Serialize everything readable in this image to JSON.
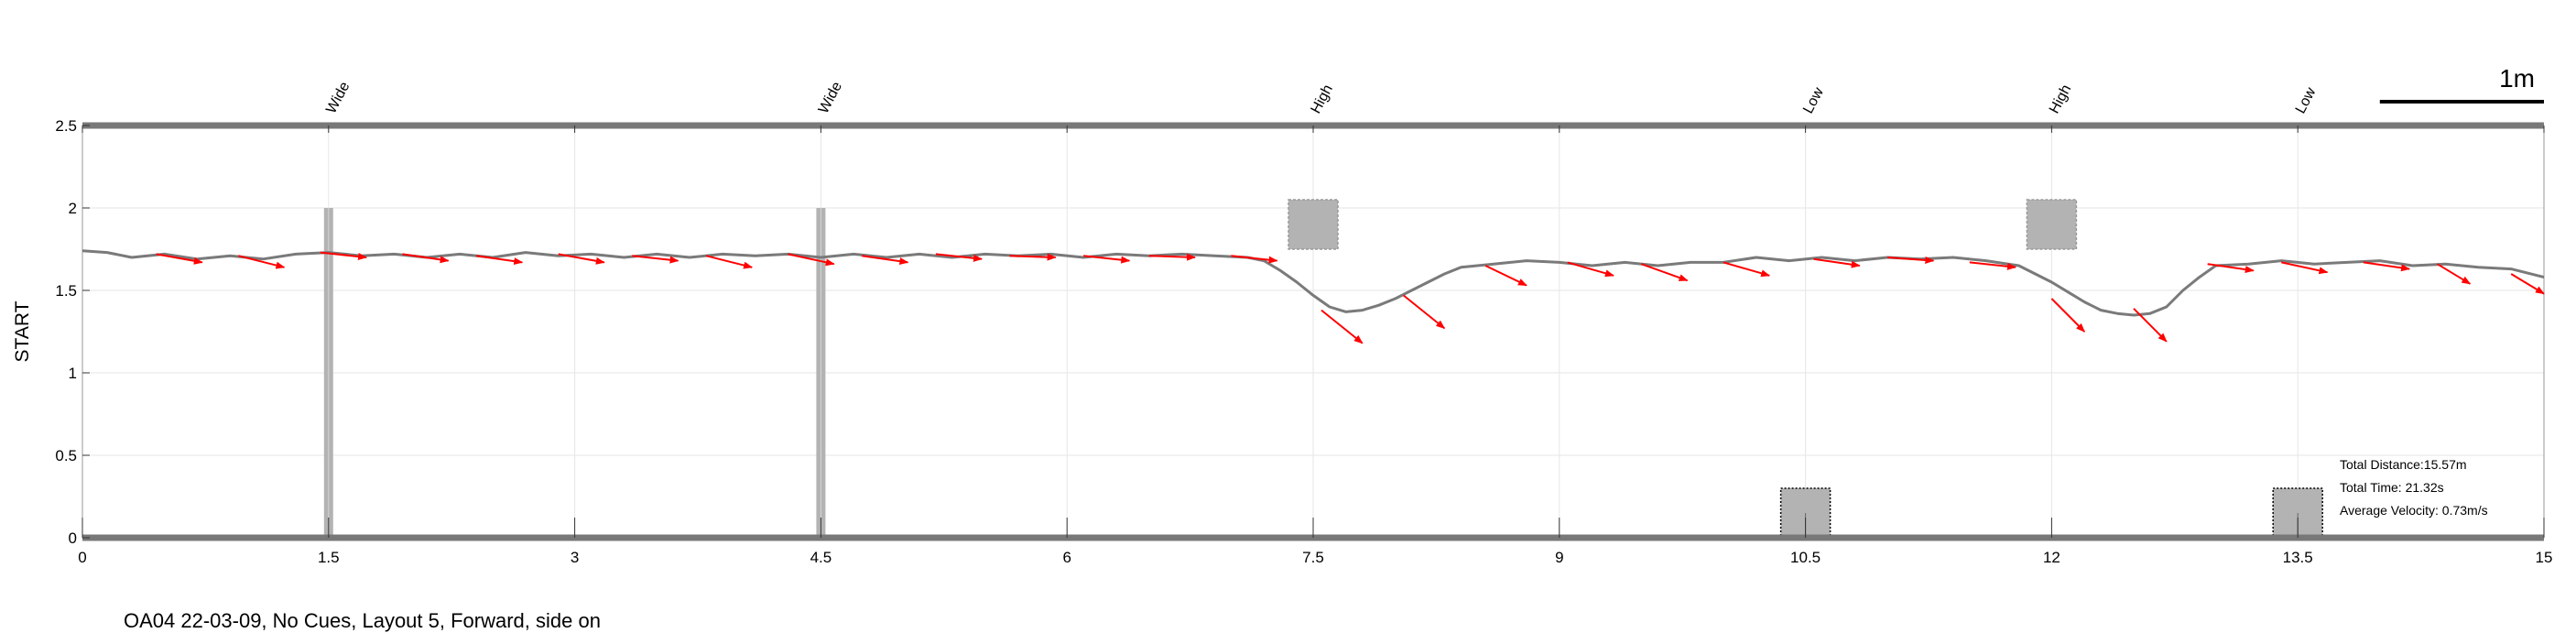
{
  "chart_data": {
    "type": "line",
    "ylabel": "START",
    "caption": "OA04 22-03-09, No Cues, Layout 5, Forward, side on",
    "xlim": [
      0,
      15
    ],
    "ylim": [
      0,
      2.5
    ],
    "xticks": [
      "0",
      "1.5",
      "3",
      "4.5",
      "6",
      "7.5",
      "9",
      "10.5",
      "12",
      "13.5",
      "15"
    ],
    "xtick_values": [
      0,
      1.5,
      3,
      4.5,
      6,
      7.5,
      9,
      10.5,
      12,
      13.5,
      15
    ],
    "yticks": [
      "0",
      "0.5",
      "1",
      "1.5",
      "2",
      "2.5"
    ],
    "ytick_values": [
      0,
      0.5,
      1,
      1.5,
      2,
      2.5
    ],
    "grid": true,
    "scale_bar": {
      "label": "1m",
      "length": 1
    },
    "stats": [
      "Total Distance:15.57m",
      "Total Time: 21.32s",
      "Average Velocity: 0.73m/s"
    ],
    "obstacles": [
      {
        "label": "Wide",
        "x": 1.5,
        "type": "wide"
      },
      {
        "label": "Wide",
        "x": 4.5,
        "type": "wide"
      },
      {
        "label": "High",
        "x": 7.5,
        "type": "high"
      },
      {
        "label": "Low",
        "x": 10.5,
        "type": "low"
      },
      {
        "label": "High",
        "x": 12.0,
        "type": "high"
      },
      {
        "label": "Low",
        "x": 13.5,
        "type": "low"
      }
    ],
    "series": [
      {
        "x": [
          0,
          0.15,
          0.3,
          0.5,
          0.7,
          0.9,
          1.1,
          1.3,
          1.5,
          1.7,
          1.9,
          2.1,
          2.3,
          2.5,
          2.7,
          2.9,
          3.1,
          3.3,
          3.5,
          3.7,
          3.9,
          4.1,
          4.3,
          4.5,
          4.7,
          4.9,
          5.1,
          5.3,
          5.5,
          5.7,
          5.9,
          6.1,
          6.3,
          6.5,
          6.7,
          6.9,
          7.1,
          7.2,
          7.3,
          7.4,
          7.5,
          7.6,
          7.7,
          7.8,
          7.9,
          8.0,
          8.1,
          8.2,
          8.3,
          8.4,
          8.5,
          8.6,
          8.8,
          9.0,
          9.2,
          9.4,
          9.6,
          9.8,
          10.0,
          10.2,
          10.4,
          10.6,
          10.8,
          11.0,
          11.2,
          11.4,
          11.6,
          11.8,
          11.9,
          12.0,
          12.1,
          12.2,
          12.3,
          12.4,
          12.5,
          12.6,
          12.7,
          12.8,
          12.9,
          13.0,
          13.2,
          13.4,
          13.6,
          13.8,
          14.0,
          14.2,
          14.4,
          14.6,
          14.8,
          15.0
        ],
        "y": [
          1.74,
          1.73,
          1.7,
          1.72,
          1.69,
          1.71,
          1.69,
          1.72,
          1.73,
          1.71,
          1.72,
          1.7,
          1.72,
          1.7,
          1.73,
          1.71,
          1.72,
          1.7,
          1.72,
          1.7,
          1.72,
          1.71,
          1.72,
          1.7,
          1.72,
          1.7,
          1.72,
          1.7,
          1.72,
          1.71,
          1.72,
          1.7,
          1.72,
          1.71,
          1.72,
          1.71,
          1.7,
          1.68,
          1.62,
          1.55,
          1.47,
          1.4,
          1.37,
          1.38,
          1.41,
          1.45,
          1.5,
          1.55,
          1.6,
          1.64,
          1.65,
          1.66,
          1.68,
          1.67,
          1.65,
          1.67,
          1.65,
          1.67,
          1.67,
          1.7,
          1.68,
          1.7,
          1.68,
          1.7,
          1.69,
          1.7,
          1.68,
          1.65,
          1.6,
          1.55,
          1.49,
          1.43,
          1.38,
          1.36,
          1.35,
          1.36,
          1.4,
          1.5,
          1.58,
          1.65,
          1.66,
          1.68,
          1.66,
          1.67,
          1.68,
          1.65,
          1.66,
          1.64,
          1.63,
          1.58
        ]
      }
    ],
    "arrows": [
      {
        "x": 0.45,
        "y": 1.72,
        "dx": 0.28,
        "dy": -0.05
      },
      {
        "x": 0.95,
        "y": 1.71,
        "dx": 0.28,
        "dy": -0.07
      },
      {
        "x": 1.45,
        "y": 1.73,
        "dx": 0.28,
        "dy": -0.03
      },
      {
        "x": 1.95,
        "y": 1.72,
        "dx": 0.28,
        "dy": -0.04
      },
      {
        "x": 2.4,
        "y": 1.71,
        "dx": 0.28,
        "dy": -0.04
      },
      {
        "x": 2.9,
        "y": 1.72,
        "dx": 0.28,
        "dy": -0.05
      },
      {
        "x": 3.35,
        "y": 1.71,
        "dx": 0.28,
        "dy": -0.03
      },
      {
        "x": 3.8,
        "y": 1.71,
        "dx": 0.28,
        "dy": -0.07
      },
      {
        "x": 4.3,
        "y": 1.72,
        "dx": 0.28,
        "dy": -0.06
      },
      {
        "x": 4.75,
        "y": 1.71,
        "dx": 0.28,
        "dy": -0.04
      },
      {
        "x": 5.2,
        "y": 1.72,
        "dx": 0.28,
        "dy": -0.03
      },
      {
        "x": 5.65,
        "y": 1.71,
        "dx": 0.28,
        "dy": -0.01
      },
      {
        "x": 6.1,
        "y": 1.71,
        "dx": 0.28,
        "dy": -0.03
      },
      {
        "x": 6.5,
        "y": 1.71,
        "dx": 0.28,
        "dy": -0.01
      },
      {
        "x": 7.0,
        "y": 1.71,
        "dx": 0.28,
        "dy": -0.03
      },
      {
        "x": 7.55,
        "y": 1.38,
        "dx": 0.25,
        "dy": -0.2
      },
      {
        "x": 8.05,
        "y": 1.47,
        "dx": 0.25,
        "dy": -0.2
      },
      {
        "x": 8.55,
        "y": 1.65,
        "dx": 0.25,
        "dy": -0.12
      },
      {
        "x": 9.05,
        "y": 1.67,
        "dx": 0.28,
        "dy": -0.08
      },
      {
        "x": 9.5,
        "y": 1.66,
        "dx": 0.28,
        "dy": -0.1
      },
      {
        "x": 10.0,
        "y": 1.67,
        "dx": 0.28,
        "dy": -0.08
      },
      {
        "x": 10.55,
        "y": 1.69,
        "dx": 0.28,
        "dy": -0.04
      },
      {
        "x": 11.0,
        "y": 1.7,
        "dx": 0.28,
        "dy": -0.02
      },
      {
        "x": 11.5,
        "y": 1.67,
        "dx": 0.28,
        "dy": -0.03
      },
      {
        "x": 12.0,
        "y": 1.45,
        "dx": 0.2,
        "dy": -0.2
      },
      {
        "x": 12.5,
        "y": 1.39,
        "dx": 0.2,
        "dy": -0.2
      },
      {
        "x": 12.95,
        "y": 1.66,
        "dx": 0.28,
        "dy": -0.04
      },
      {
        "x": 13.4,
        "y": 1.67,
        "dx": 0.28,
        "dy": -0.06
      },
      {
        "x": 13.9,
        "y": 1.67,
        "dx": 0.28,
        "dy": -0.04
      },
      {
        "x": 14.35,
        "y": 1.66,
        "dx": 0.2,
        "dy": -0.12
      },
      {
        "x": 14.8,
        "y": 1.6,
        "dx": 0.2,
        "dy": -0.12
      }
    ],
    "colors": {
      "path": "#7a7a7a",
      "arrow": "#ff0000",
      "obstacle": "#b3b3b3",
      "frame": "#787878",
      "grid": "#e6e6e6"
    }
  }
}
